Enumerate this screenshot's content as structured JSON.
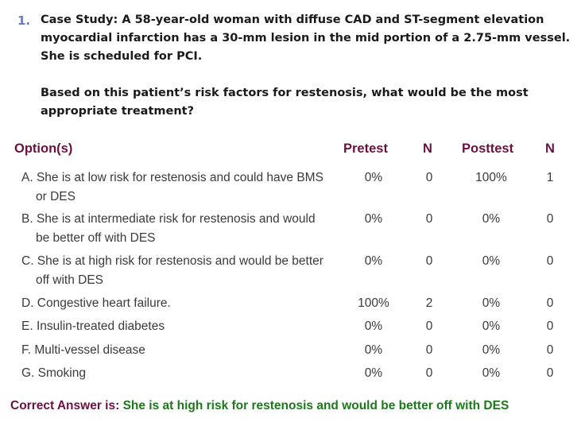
{
  "question": {
    "number": "1.",
    "case_lines": [
      "Case Study: A 58-year-old woman with diffuse CAD and ST-segment elevation",
      "myocardial infarction has a 30-mm lesion in the mid portion of a 2.75-mm vessel.",
      "She is scheduled for PCI."
    ],
    "prompt_lines": [
      "Based on this patient’s risk factors for restenosis, what would be the most",
      "appropriate treatment?"
    ]
  },
  "table": {
    "headers": {
      "option": "Option(s)",
      "pretest": "Pretest",
      "n1": "N",
      "posttest": "Posttest",
      "n2": "N"
    },
    "rows": [
      {
        "line1": "A. She is at low risk for restenosis and could have BMS",
        "line2": "or DES",
        "pretest": "0%",
        "n1": "0",
        "posttest": "100%",
        "n2": "1"
      },
      {
        "line1": "B. She is at intermediate risk for restenosis and would",
        "line2": "be better off with DES",
        "pretest": "0%",
        "n1": "0",
        "posttest": "0%",
        "n2": "0"
      },
      {
        "line1": "C. She is at high risk for restenosis and would be better",
        "line2": "off with DES",
        "pretest": "0%",
        "n1": "0",
        "posttest": "0%",
        "n2": "0"
      },
      {
        "line1": "D. Congestive heart failure.",
        "line2": "",
        "pretest": "100%",
        "n1": "2",
        "posttest": "0%",
        "n2": "0"
      },
      {
        "line1": "E. Insulin-treated diabetes",
        "line2": "",
        "pretest": "0%",
        "n1": "0",
        "posttest": "0%",
        "n2": "0"
      },
      {
        "line1": "F. Multi-vessel disease",
        "line2": "",
        "pretest": "0%",
        "n1": "0",
        "posttest": "0%",
        "n2": "0"
      },
      {
        "line1": "G. Smoking",
        "line2": "",
        "pretest": "0%",
        "n1": "0",
        "posttest": "0%",
        "n2": "0"
      }
    ]
  },
  "answer": {
    "label": "Correct Answer is:",
    "value": "She is at high risk for restenosis and would be better off with DES"
  },
  "colors": {
    "header": "#6b1140",
    "answer_value": "#1a7a1a",
    "question_number": "#6a7bb8"
  }
}
